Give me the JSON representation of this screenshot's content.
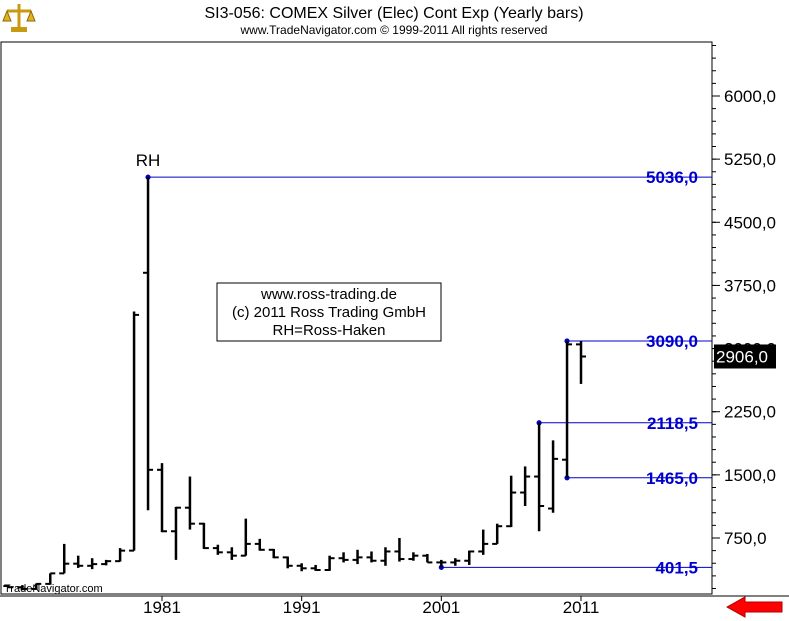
{
  "header": {
    "title": "SI3-056:  COMEX Silver (Elec) Cont Exp  (Yearly bars)",
    "subtitle": "www.TradeNavigator.com © 1999-2011 All rights reserved"
  },
  "watermark": "TradeNavigator.com",
  "info_box": {
    "lines": [
      "www.ross-trading.de",
      "(c) 2011 Ross Trading GmbH",
      "RH=Ross-Haken"
    ]
  },
  "annotations": {
    "rh_label": "RH"
  },
  "colors": {
    "accent": "#0000cc",
    "bar": "#000000",
    "current_bg": "#000000",
    "current_fg": "#ffffff",
    "arrow": "#ff0000"
  },
  "icons": {
    "logo": "scale-logo-icon",
    "scroll": "scroll-right-arrow-icon"
  },
  "chart_data": {
    "type": "ohlc",
    "title": "SI3-056:  COMEX Silver (Elec) Cont Exp  (Yearly bars)",
    "xlabel": "",
    "ylabel": "",
    "x_range": [
      1970,
      2014
    ],
    "ylim": [
      -300,
      6800
    ],
    "y_ticks": [
      {
        "value": 750,
        "label": "750,0"
      },
      {
        "value": 1500,
        "label": "1500,0"
      },
      {
        "value": 2250,
        "label": "2250,0"
      },
      {
        "value": 3000,
        "label": "3000,0"
      },
      {
        "value": 3750,
        "label": "3750,0"
      },
      {
        "value": 4500,
        "label": "4500,0"
      },
      {
        "value": 5250,
        "label": "5250,0"
      },
      {
        "value": 6000,
        "label": "6000,0"
      }
    ],
    "x_ticks": [
      {
        "value": 1981,
        "label": "1981"
      },
      {
        "value": 1991,
        "label": "1991"
      },
      {
        "value": 2001,
        "label": "2001"
      },
      {
        "value": 2011,
        "label": "2011"
      }
    ],
    "bars": [
      {
        "year": 1970,
        "open": 180,
        "high": 195,
        "low": 155,
        "close": 165
      },
      {
        "year": 1971,
        "open": 165,
        "high": 190,
        "low": 130,
        "close": 145
      },
      {
        "year": 1972,
        "open": 145,
        "high": 210,
        "low": 135,
        "close": 205
      },
      {
        "year": 1973,
        "open": 205,
        "high": 330,
        "low": 195,
        "close": 330
      },
      {
        "year": 1974,
        "open": 330,
        "high": 680,
        "low": 330,
        "close": 445
      },
      {
        "year": 1975,
        "open": 445,
        "high": 540,
        "low": 395,
        "close": 420
      },
      {
        "year": 1976,
        "open": 420,
        "high": 510,
        "low": 380,
        "close": 440
      },
      {
        "year": 1977,
        "open": 440,
        "high": 490,
        "low": 425,
        "close": 475
      },
      {
        "year": 1978,
        "open": 475,
        "high": 630,
        "low": 470,
        "close": 600
      },
      {
        "year": 1979,
        "open": 600,
        "high": 3440,
        "low": 600,
        "close": 3400
      },
      {
        "year": 1980,
        "open": 3900,
        "high": 5036,
        "low": 1080,
        "close": 1560
      },
      {
        "year": 1981,
        "open": 1560,
        "high": 1640,
        "low": 820,
        "close": 830
      },
      {
        "year": 1982,
        "open": 830,
        "high": 1120,
        "low": 490,
        "close": 1110
      },
      {
        "year": 1983,
        "open": 1110,
        "high": 1480,
        "low": 850,
        "close": 920
      },
      {
        "year": 1984,
        "open": 920,
        "high": 930,
        "low": 620,
        "close": 630
      },
      {
        "year": 1985,
        "open": 630,
        "high": 670,
        "low": 550,
        "close": 580
      },
      {
        "year": 1986,
        "open": 580,
        "high": 640,
        "low": 490,
        "close": 540
      },
      {
        "year": 1987,
        "open": 540,
        "high": 980,
        "low": 540,
        "close": 680
      },
      {
        "year": 1988,
        "open": 680,
        "high": 740,
        "low": 600,
        "close": 610
      },
      {
        "year": 1989,
        "open": 610,
        "high": 620,
        "low": 510,
        "close": 520
      },
      {
        "year": 1990,
        "open": 520,
        "high": 530,
        "low": 390,
        "close": 420
      },
      {
        "year": 1991,
        "open": 420,
        "high": 450,
        "low": 355,
        "close": 390
      },
      {
        "year": 1992,
        "open": 390,
        "high": 430,
        "low": 360,
        "close": 370
      },
      {
        "year": 1993,
        "open": 370,
        "high": 540,
        "low": 360,
        "close": 510
      },
      {
        "year": 1994,
        "open": 510,
        "high": 580,
        "low": 460,
        "close": 490
      },
      {
        "year": 1995,
        "open": 490,
        "high": 610,
        "low": 440,
        "close": 520
      },
      {
        "year": 1996,
        "open": 520,
        "high": 590,
        "low": 460,
        "close": 480
      },
      {
        "year": 1997,
        "open": 480,
        "high": 640,
        "low": 420,
        "close": 590
      },
      {
        "year": 1998,
        "open": 590,
        "high": 750,
        "low": 470,
        "close": 500
      },
      {
        "year": 1999,
        "open": 500,
        "high": 580,
        "low": 480,
        "close": 540
      },
      {
        "year": 2000,
        "open": 540,
        "high": 560,
        "low": 460,
        "close": 460
      },
      {
        "year": 2001,
        "open": 460,
        "high": 490,
        "low": 401.5,
        "close": 460
      },
      {
        "year": 2002,
        "open": 460,
        "high": 510,
        "low": 420,
        "close": 480
      },
      {
        "year": 2003,
        "open": 480,
        "high": 600,
        "low": 430,
        "close": 590
      },
      {
        "year": 2004,
        "open": 590,
        "high": 850,
        "low": 550,
        "close": 680
      },
      {
        "year": 2005,
        "open": 680,
        "high": 920,
        "low": 680,
        "close": 890
      },
      {
        "year": 2006,
        "open": 890,
        "high": 1490,
        "low": 880,
        "close": 1290
      },
      {
        "year": 2007,
        "open": 1290,
        "high": 1600,
        "low": 1130,
        "close": 1480
      },
      {
        "year": 2008,
        "open": 1480,
        "high": 2118.5,
        "low": 830,
        "close": 1130
      },
      {
        "year": 2009,
        "open": 1100,
        "high": 1910,
        "low": 1050,
        "close": 1690
      },
      {
        "year": 2010,
        "open": 1680,
        "high": 3090,
        "low": 1465,
        "close": 3050
      },
      {
        "year": 2011,
        "open": 3050,
        "high": 3090,
        "low": 2580,
        "close": 2906
      }
    ],
    "levels": [
      {
        "value": 5036.0,
        "label": "5036,0",
        "from_year": 1980
      },
      {
        "value": 3090.0,
        "label": "3090,0",
        "from_year": 2010
      },
      {
        "value": 2118.5,
        "label": "2118,5",
        "from_year": 2008
      },
      {
        "value": 1465.0,
        "label": "1465,0",
        "from_year": 2010
      },
      {
        "value": 401.5,
        "label": "401,5",
        "from_year": 2001
      }
    ],
    "current_value": {
      "value": 2906.0,
      "label": "2906,0"
    },
    "legend": "none",
    "grid": false
  }
}
